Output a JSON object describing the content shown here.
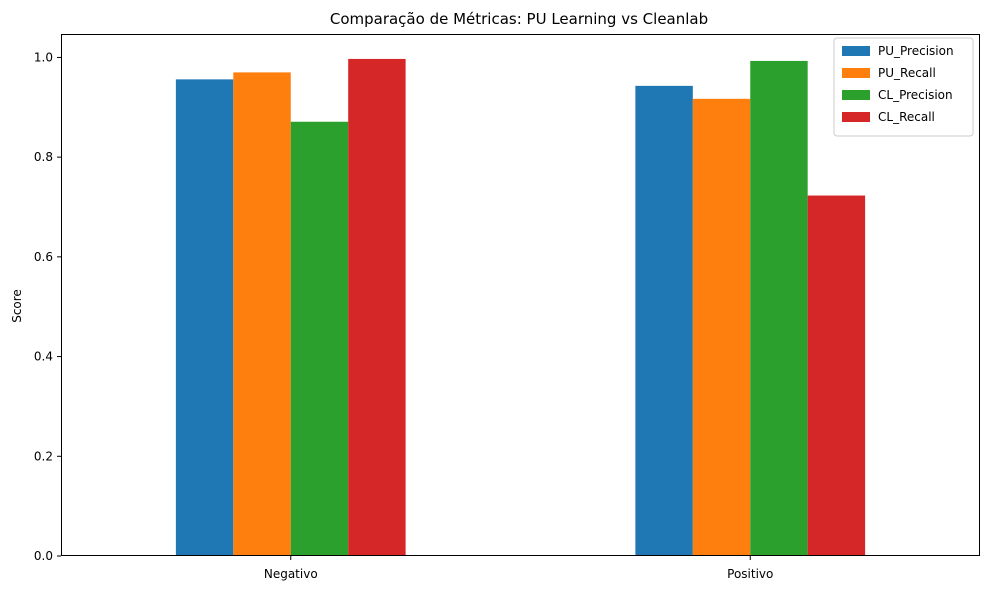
{
  "chart_data": {
    "type": "bar",
    "title": "Comparação de Métricas: PU Learning vs Cleanlab",
    "xlabel": "",
    "ylabel": "Score",
    "categories": [
      "Negativo",
      "Positivo"
    ],
    "series": [
      {
        "name": "PU_Precision",
        "color": "#1f77b4",
        "values": [
          0.956,
          0.943
        ]
      },
      {
        "name": "PU_Recall",
        "color": "#ff7f0e",
        "values": [
          0.97,
          0.917
        ]
      },
      {
        "name": "CL_Precision",
        "color": "#2ca02c",
        "values": [
          0.871,
          0.993
        ]
      },
      {
        "name": "CL_Recall",
        "color": "#d62728",
        "values": [
          0.997,
          0.723
        ]
      }
    ],
    "ylim": [
      0,
      1.047
    ],
    "yticks": [
      0.0,
      0.2,
      0.4,
      0.6,
      0.8,
      1.0
    ],
    "ytick_labels": [
      "0.0",
      "0.2",
      "0.4",
      "0.6",
      "0.8",
      "1.0"
    ],
    "grid": false,
    "legend_position": "top-right"
  }
}
